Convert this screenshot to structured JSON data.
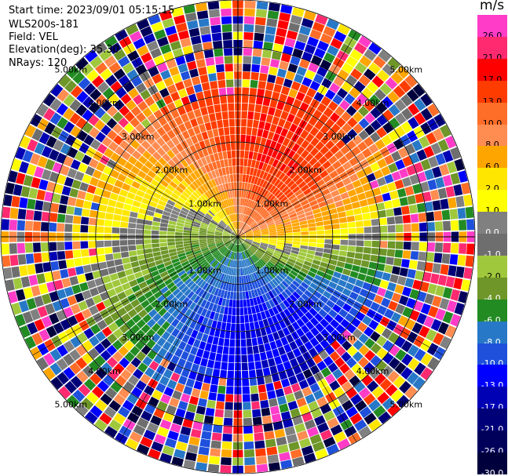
{
  "header": {
    "start_time": "Start time: 2023/09/01 05:15:15",
    "instrument": "WLS200s-181",
    "field": "Field: VEL",
    "elevation": "Elevation(deg): 35.30",
    "nrays": "NRays: 120"
  },
  "colorbar": {
    "units": "m/s",
    "levels": [
      {
        "label": "26.0",
        "color": "#ff3cc8"
      },
      {
        "label": "21.0",
        "color": "#ff2a70"
      },
      {
        "label": "17.0",
        "color": "#ff0000"
      },
      {
        "label": "13.0",
        "color": "#ff3c00"
      },
      {
        "label": "10.0",
        "color": "#ff6e28"
      },
      {
        "label": "8.0",
        "color": "#ff8c50"
      },
      {
        "label": "6.0",
        "color": "#ffa500"
      },
      {
        "label": "2.0",
        "color": "#ffe600"
      },
      {
        "label": "1.0",
        "color": "#ffff00"
      },
      {
        "label": "0.0",
        "color": "#808080"
      },
      {
        "label": "-1.0",
        "color": "#6e6e6e"
      },
      {
        "label": "-2.0",
        "color": "#a0c83c"
      },
      {
        "label": "-4.0",
        "color": "#6e9628"
      },
      {
        "label": "-6.0",
        "color": "#228b22"
      },
      {
        "label": "-8.0",
        "color": "#2878c8"
      },
      {
        "label": "-10.0",
        "color": "#1e50dc"
      },
      {
        "label": "-13.0",
        "color": "#0000ff"
      },
      {
        "label": "-17.0",
        "color": "#0000b4"
      },
      {
        "label": "-21.0",
        "color": "#000078"
      },
      {
        "label": "-26.0",
        "color": "#00005a"
      },
      {
        "label": "-30.0",
        "color": "#00003c"
      }
    ]
  },
  "chart_data": {
    "type": "heatmap",
    "projection": "polar PPI",
    "field": "VEL",
    "units": "m/s",
    "nrays": 120,
    "elevation_deg": 35.3,
    "range_rings_km": [
      1,
      2,
      3,
      4,
      5
    ],
    "range_labels": [
      "1.00km",
      "2.00km",
      "3.00km",
      "4.00km",
      "5.00km"
    ],
    "max_range_km": 5.0,
    "range_gates": 30,
    "pattern": "velocity dipole: positive (orange/red) toward north-east, negative (blue/green) toward south-west; near-zero (yellow/gray) bands between; outer gates noisy",
    "noise_start_km": 3.55,
    "color_levels": [
      26.0,
      21.0,
      17.0,
      13.0,
      10.0,
      8.0,
      6.0,
      2.0,
      1.0,
      0.0,
      -1.0,
      -2.0,
      -4.0,
      -6.0,
      -8.0,
      -10.0,
      -13.0,
      -17.0,
      -21.0,
      -26.0,
      -30.0
    ]
  }
}
